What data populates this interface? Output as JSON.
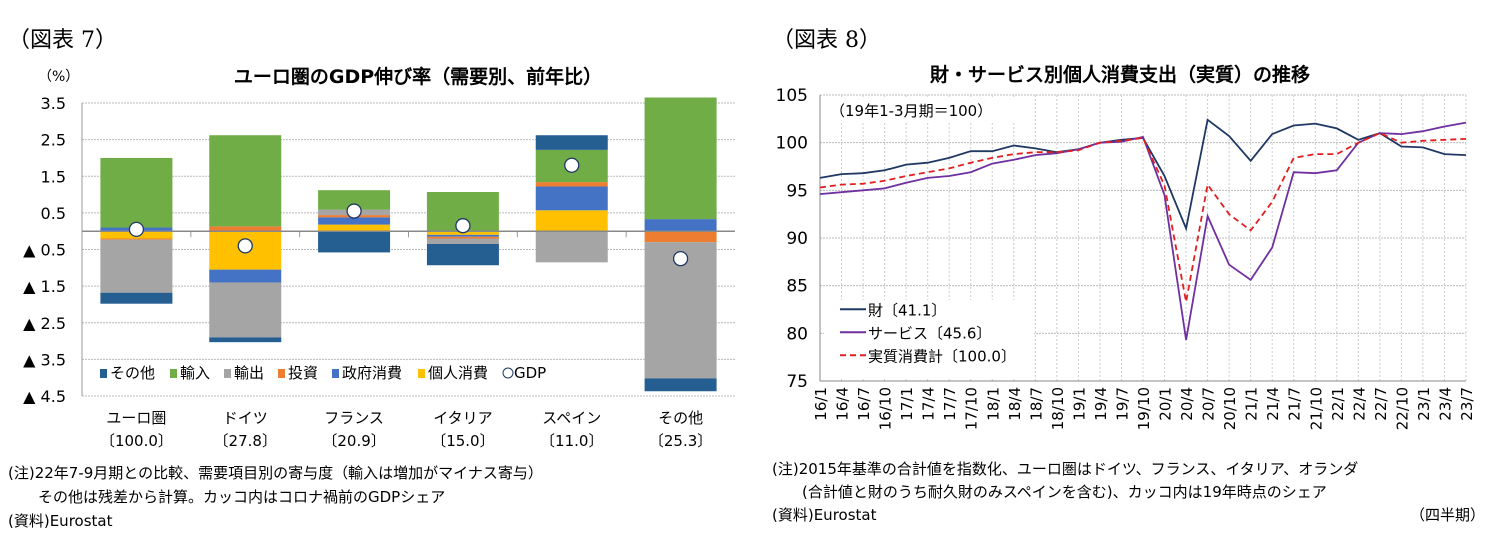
{
  "left": {
    "figure_label": "（図表 7）",
    "notes": [
      "(注)22年7-9月期との比較、需要項目別の寄与度（輸入は増加がマイナス寄与）",
      "　　その他は残差から計算。カッコ内はコロナ禍前のGDPシェア",
      "(資料)Eurostat"
    ]
  },
  "right": {
    "figure_label": "（図表 8）",
    "notes": [
      "(注)2015年基準の合計値を指数化、ユーロ圏はドイツ、フランス、イタリア、オランダ",
      "　　(合計値と財のうち耐久財のみスペインを含む)、カッコ内は19年時点のシェア",
      "(資料)Eurostat"
    ],
    "period_unit": "（四半期）"
  },
  "chart_data": [
    {
      "type": "bar",
      "stacked": true,
      "title": "ユーロ圏のGDP伸び率（需要別、前年比）",
      "ylabel": "（%）",
      "ylim": [
        -4.5,
        3.5
      ],
      "yticks": [
        3.5,
        2.5,
        1.5,
        0.5,
        -0.5,
        -1.5,
        -2.5,
        -3.5,
        -4.5
      ],
      "ytick_labels": [
        "3.5",
        "2.5",
        "1.5",
        "0.5",
        "▲ 0.5",
        "▲ 1.5",
        "▲ 2.5",
        "▲ 3.5",
        "▲ 4.5"
      ],
      "grid": true,
      "legend": "bottom-inside",
      "categories": [
        "ユーロ圏",
        "ドイツ",
        "フランス",
        "イタリア",
        "スペイン",
        "その他"
      ],
      "category_shares": [
        "〔100.0〕",
        "〔27.8〕",
        "〔20.9〕",
        "〔15.0〕",
        "〔11.0〕",
        "〔25.3〕"
      ],
      "series": [
        {
          "name": "個人消費",
          "color": "#ffc000",
          "values": [
            -0.2,
            -1.05,
            0.18,
            -0.1,
            0.57,
            0
          ]
        },
        {
          "name": "政府消費",
          "color": "#4472c4",
          "values": [
            0.1,
            -0.35,
            0.2,
            -0.05,
            0.65,
            0.33
          ]
        },
        {
          "name": "投資",
          "color": "#ed7d31",
          "values": [
            -0.03,
            0.13,
            0.06,
            -0.05,
            0.12,
            -0.3
          ]
        },
        {
          "name": "輸出",
          "color": "#a5a5a5",
          "values": [
            -1.45,
            -1.5,
            0.15,
            -0.15,
            -0.85,
            -3.72
          ]
        },
        {
          "name": "輸入",
          "color": "#70ad47",
          "values": [
            1.9,
            2.49,
            0.53,
            1.07,
            0.88,
            3.32
          ]
        },
        {
          "name": "その他",
          "color": "#255e91",
          "values": [
            -0.3,
            -0.13,
            -0.58,
            -0.58,
            0.4,
            -0.35
          ]
        }
      ],
      "legend_order": [
        "その他",
        "輸入",
        "輸出",
        "投資",
        "政府消費",
        "個人消費",
        "GDP"
      ],
      "gdp": {
        "name": "GDP",
        "values": [
          0.05,
          -0.4,
          0.55,
          0.15,
          1.8,
          -0.75
        ]
      }
    },
    {
      "type": "line",
      "title": "財・サービス別個人消費支出（実質）の推移",
      "annotation": "（19年1-3月期＝100）",
      "ylim": [
        75,
        105
      ],
      "yticks": [
        75,
        80,
        85,
        90,
        95,
        100,
        105
      ],
      "grid": true,
      "legend": "bottom-left",
      "x": [
        "16/1",
        "16/4",
        "16/7",
        "16/10",
        "17/1",
        "17/4",
        "17/7",
        "17/10",
        "18/1",
        "18/4",
        "18/7",
        "18/10",
        "19/1",
        "19/4",
        "19/7",
        "19/10",
        "20/1",
        "20/4",
        "20/7",
        "20/10",
        "21/1",
        "21/4",
        "21/7",
        "21/10",
        "22/1",
        "22/4",
        "22/7",
        "22/10",
        "23/1",
        "23/4",
        "23/7"
      ],
      "series": [
        {
          "name": "財〔41.1〕",
          "color": "#1f3864",
          "dash": false,
          "values": [
            96.3,
            96.7,
            96.8,
            97.1,
            97.7,
            97.9,
            98.4,
            99.1,
            99.1,
            99.7,
            99.4,
            99.0,
            99.3,
            100.0,
            100.3,
            100.5,
            96.5,
            91.0,
            102.4,
            100.7,
            98.1,
            100.9,
            101.8,
            102.0,
            101.5,
            100.3,
            101.0,
            99.6,
            99.5,
            98.8,
            98.7
          ]
        },
        {
          "name": "サービス〔45.6〕",
          "color": "#7030a0",
          "dash": false,
          "values": [
            94.6,
            94.8,
            95.0,
            95.2,
            95.8,
            96.3,
            96.5,
            96.9,
            97.8,
            98.2,
            98.7,
            98.9,
            99.3,
            100.0,
            100.1,
            100.6,
            94.5,
            79.3,
            92.3,
            87.2,
            85.6,
            89.0,
            96.9,
            96.8,
            97.1,
            100.0,
            101.0,
            100.9,
            101.2,
            101.7,
            102.1
          ]
        },
        {
          "name": "実質消費計〔100.0〕",
          "color": "#e02020",
          "dash": true,
          "values": [
            95.3,
            95.6,
            95.7,
            96.0,
            96.5,
            96.9,
            97.3,
            97.9,
            98.4,
            98.8,
            99.0,
            99.0,
            99.2,
            100.0,
            100.2,
            100.5,
            95.5,
            83.3,
            95.6,
            92.5,
            90.8,
            93.8,
            98.4,
            98.8,
            98.8,
            100.0,
            101.0,
            100.0,
            100.2,
            100.3,
            100.4
          ]
        }
      ]
    }
  ]
}
